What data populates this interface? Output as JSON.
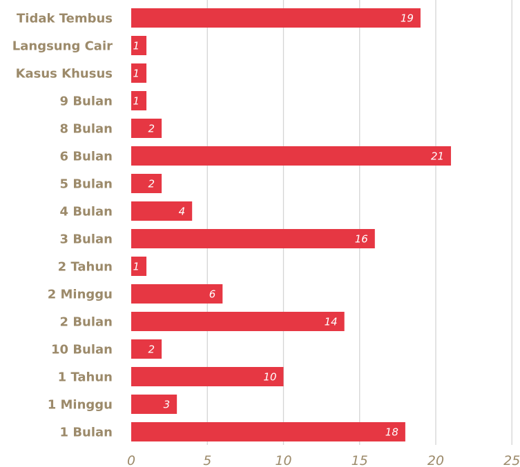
{
  "chart_data": {
    "type": "bar",
    "orientation": "horizontal",
    "categories": [
      "Tidak Tembus",
      "Langsung Cair",
      "Kasus Khusus",
      "9 Bulan",
      "8 Bulan",
      "6 Bulan",
      "5 Bulan",
      "4 Bulan",
      "3 Bulan",
      "2 Tahun",
      "2 Minggu",
      "2 Bulan",
      "10 Bulan",
      "1 Tahun",
      "1 Minggu",
      "1 Bulan"
    ],
    "values": [
      19,
      1,
      1,
      1,
      2,
      21,
      2,
      4,
      16,
      1,
      6,
      14,
      2,
      10,
      3,
      18
    ],
    "data_labels": [
      "19",
      "1",
      "1",
      "1",
      "2",
      "21",
      "2",
      "4",
      "16",
      "1",
      "6",
      "14",
      "2",
      "10",
      "3",
      "18"
    ],
    "x_ticks": [
      "0",
      "5",
      "10",
      "15",
      "20",
      "25"
    ],
    "x_tick_values": [
      0,
      5,
      10,
      15,
      20,
      25
    ],
    "xlim": [
      0,
      25
    ],
    "grid": true,
    "legend": false,
    "bar_color": "#e63743",
    "label_color": "#9c8a6a",
    "grid_color": "#d4d4d4"
  }
}
